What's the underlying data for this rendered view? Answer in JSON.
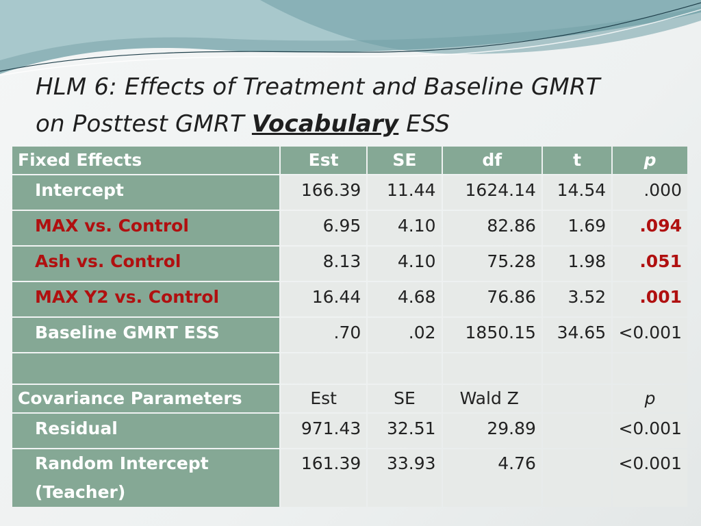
{
  "slide": {
    "title_line1": "HLM 6: Effects of Treatment and Baseline GMRT",
    "title_line2_prefix": "on Posttest GMRT",
    "title_line2_emph": "Vocabulary",
    "title_line2_suffix": "ESS"
  },
  "fixed_header": {
    "label": "Fixed Effects",
    "est": "Est",
    "se": "SE",
    "df": "df",
    "t": "t",
    "p": "p"
  },
  "fixed_rows": [
    {
      "label": "Intercept",
      "est": "166.39",
      "se": "11.44",
      "df": "1624.14",
      "t": "14.54",
      "p": ".000"
    },
    {
      "label": "MAX vs. Control",
      "est": "6.95",
      "se": "4.10",
      "df": "82.86",
      "t": "1.69",
      "p": ".094"
    },
    {
      "label": "Ash vs. Control",
      "est": "8.13",
      "se": "4.10",
      "df": "75.28",
      "t": "1.98",
      "p": ".051"
    },
    {
      "label": "MAX Y2 vs. Control",
      "est": "16.44",
      "se": "4.68",
      "df": "76.86",
      "t": "3.52",
      "p": ".001"
    },
    {
      "label": "Baseline GMRT ESS",
      "est": ".70",
      "se": ".02",
      "df": "1850.15",
      "t": "34.65",
      "p": "<0.001"
    }
  ],
  "cov_header": {
    "label": "Covariance Parameters",
    "est": "Est",
    "se": "SE",
    "wald": "Wald Z",
    "p": "p"
  },
  "cov_rows": [
    {
      "label": "Residual",
      "est": "971.43",
      "se": "32.51",
      "wald": "29.89",
      "p": "<0.001"
    },
    {
      "label_line1": "Random Intercept",
      "label_line2": "(Teacher)",
      "est": "161.39",
      "se": "33.93",
      "wald": "4.76",
      "p": "<0.001"
    }
  ],
  "colors": {
    "header_green": "#85a895",
    "cell_gray": "#e7eae8",
    "significant_red": "#b01010",
    "title_text": "#1f1f1f"
  }
}
